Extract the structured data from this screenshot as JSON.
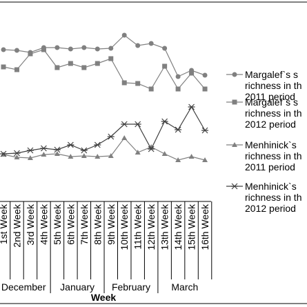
{
  "chart_data": {
    "type": "line",
    "x_label": "Week",
    "categories": [
      "1st Week",
      "2nd Week",
      "3rd Week",
      "4th Week",
      "5th Week",
      "6th Week",
      "7th Week",
      "8th Week",
      "9th Week",
      "10th Week",
      "11th Week",
      "12th Week",
      "13th Week",
      "14th Week",
      "15th Week",
      "16th Week"
    ],
    "month_labels": [
      "December",
      "January",
      "February",
      "March"
    ],
    "ylim": [
      0,
      6
    ],
    "series": [
      {
        "name": "Margalef`s s richness in th 2011 period",
        "color": "#808080",
        "marker": "circle",
        "values": [
          4.4,
          4.38,
          4.32,
          4.46,
          4.46,
          4.42,
          4.46,
          4.42,
          4.44,
          4.82,
          4.52,
          4.58,
          4.44,
          3.62,
          3.8,
          3.66
        ]
      },
      {
        "name": "Margalef`s s richness in th 2012 period",
        "color": "#808080",
        "marker": "square",
        "values": [
          3.9,
          3.82,
          4.28,
          4.4,
          3.88,
          4.0,
          3.88,
          4.0,
          4.14,
          3.44,
          3.42,
          3.26,
          3.92,
          3.26,
          3.72,
          3.26
        ]
      },
      {
        "name": "Menhinick`s richness in th 2011 period",
        "color": "#808080",
        "marker": "triangle",
        "values": [
          1.36,
          1.28,
          1.26,
          1.36,
          1.38,
          1.3,
          1.32,
          1.3,
          1.32,
          1.84,
          1.42,
          1.58,
          1.38,
          1.2,
          1.3,
          1.2
        ]
      },
      {
        "name": "Menhinick`s richness in th 2012 period",
        "color": "#404040",
        "marker": "star",
        "values": [
          1.38,
          1.4,
          1.48,
          1.54,
          1.5,
          1.64,
          1.48,
          1.64,
          1.88,
          2.24,
          2.24,
          1.52,
          2.32,
          2.08,
          2.74,
          2.06
        ]
      }
    ]
  }
}
